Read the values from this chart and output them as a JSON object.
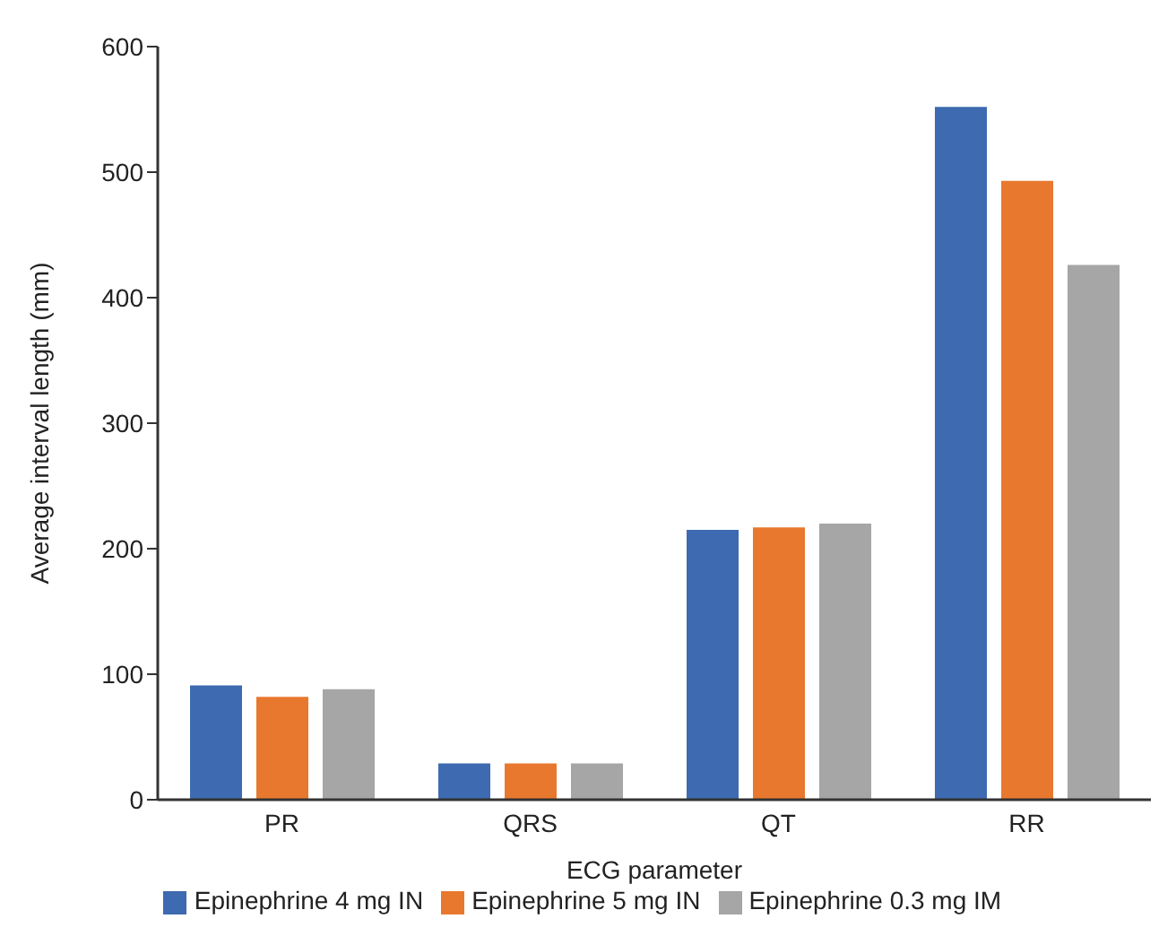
{
  "chart_data": {
    "type": "bar",
    "xlabel": "ECG parameter",
    "ylabel": "Average interval length (mm)",
    "categories": [
      "PR",
      "QRS",
      "QT",
      "RR"
    ],
    "series": [
      {
        "name": "Epinephrine 4 mg IN",
        "color": "#3d6ab0",
        "values": [
          91,
          29,
          215,
          552
        ]
      },
      {
        "name": "Epinephrine 5 mg IN",
        "color": "#e8782e",
        "values": [
          82,
          29,
          217,
          493
        ]
      },
      {
        "name": "Epinephrine 0.3 mg IM",
        "color": "#a6a6a6",
        "values": [
          88,
          29,
          220,
          426
        ]
      }
    ],
    "ylim": [
      0,
      600
    ],
    "yticks": [
      0,
      100,
      200,
      300,
      400,
      500,
      600
    ],
    "grid": false,
    "legend": "bottom"
  }
}
